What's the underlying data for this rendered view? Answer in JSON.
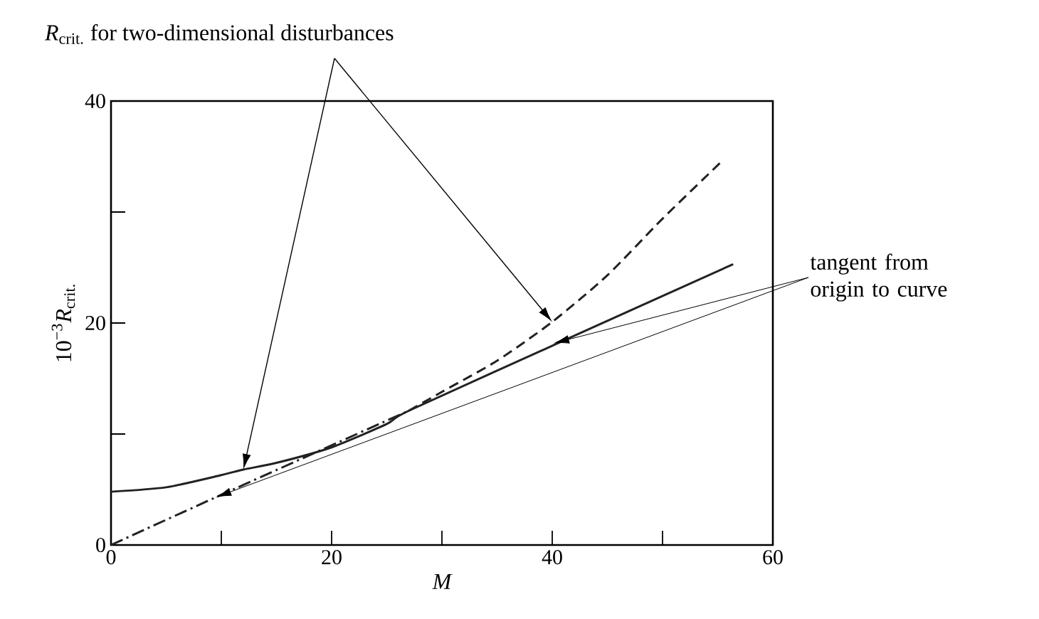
{
  "chart_data": {
    "type": "line",
    "title": "*R*$_{crit.}$ for two-dimensional disturbances",
    "xlabel": "M",
    "ylabel": "10$^{−3}$*R*$_{crit.}$",
    "xlim": [
      0,
      60
    ],
    "ylim": [
      0,
      40
    ],
    "xticks": [
      0,
      {
        "value": 10,
        "label": null
      },
      20,
      {
        "value": 30,
        "label": null
      },
      40,
      {
        "value": 50,
        "label": null
      },
      60
    ],
    "yticks": [
      0,
      {
        "value": 10,
        "label": null
      },
      20,
      {
        "value": 30,
        "label": null
      },
      40
    ],
    "marker": "none",
    "annotations": [
      {
        "text": "tangent from origin to curve",
        "x": 41,
        "y": 18.4
      }
    ],
    "series": [
      {
        "color": "#222222",
        "line_style": "solid",
        "x": [
          0,
          5,
          10,
          12,
          15,
          20,
          25,
          27,
          41,
          56.4
        ],
        "values": [
          4.8,
          5.2,
          6.3,
          6.8,
          7.4,
          8.8,
          10.9,
          12.1,
          18.4,
          25.3
        ]
      },
      {
        "color": "#222222",
        "line_style": "dashed",
        "x": [
          27,
          30,
          35,
          40,
          45,
          50,
          55.4
        ],
        "values": [
          12.1,
          13.8,
          16.6,
          20.1,
          24.3,
          29.4,
          34.6
        ]
      },
      {
        "color": "#222222",
        "line_style": "dashdot",
        "x": [
          0,
          9.5,
          27
        ],
        "values": [
          0,
          4.3,
          12.1
        ]
      }
    ]
  }
}
